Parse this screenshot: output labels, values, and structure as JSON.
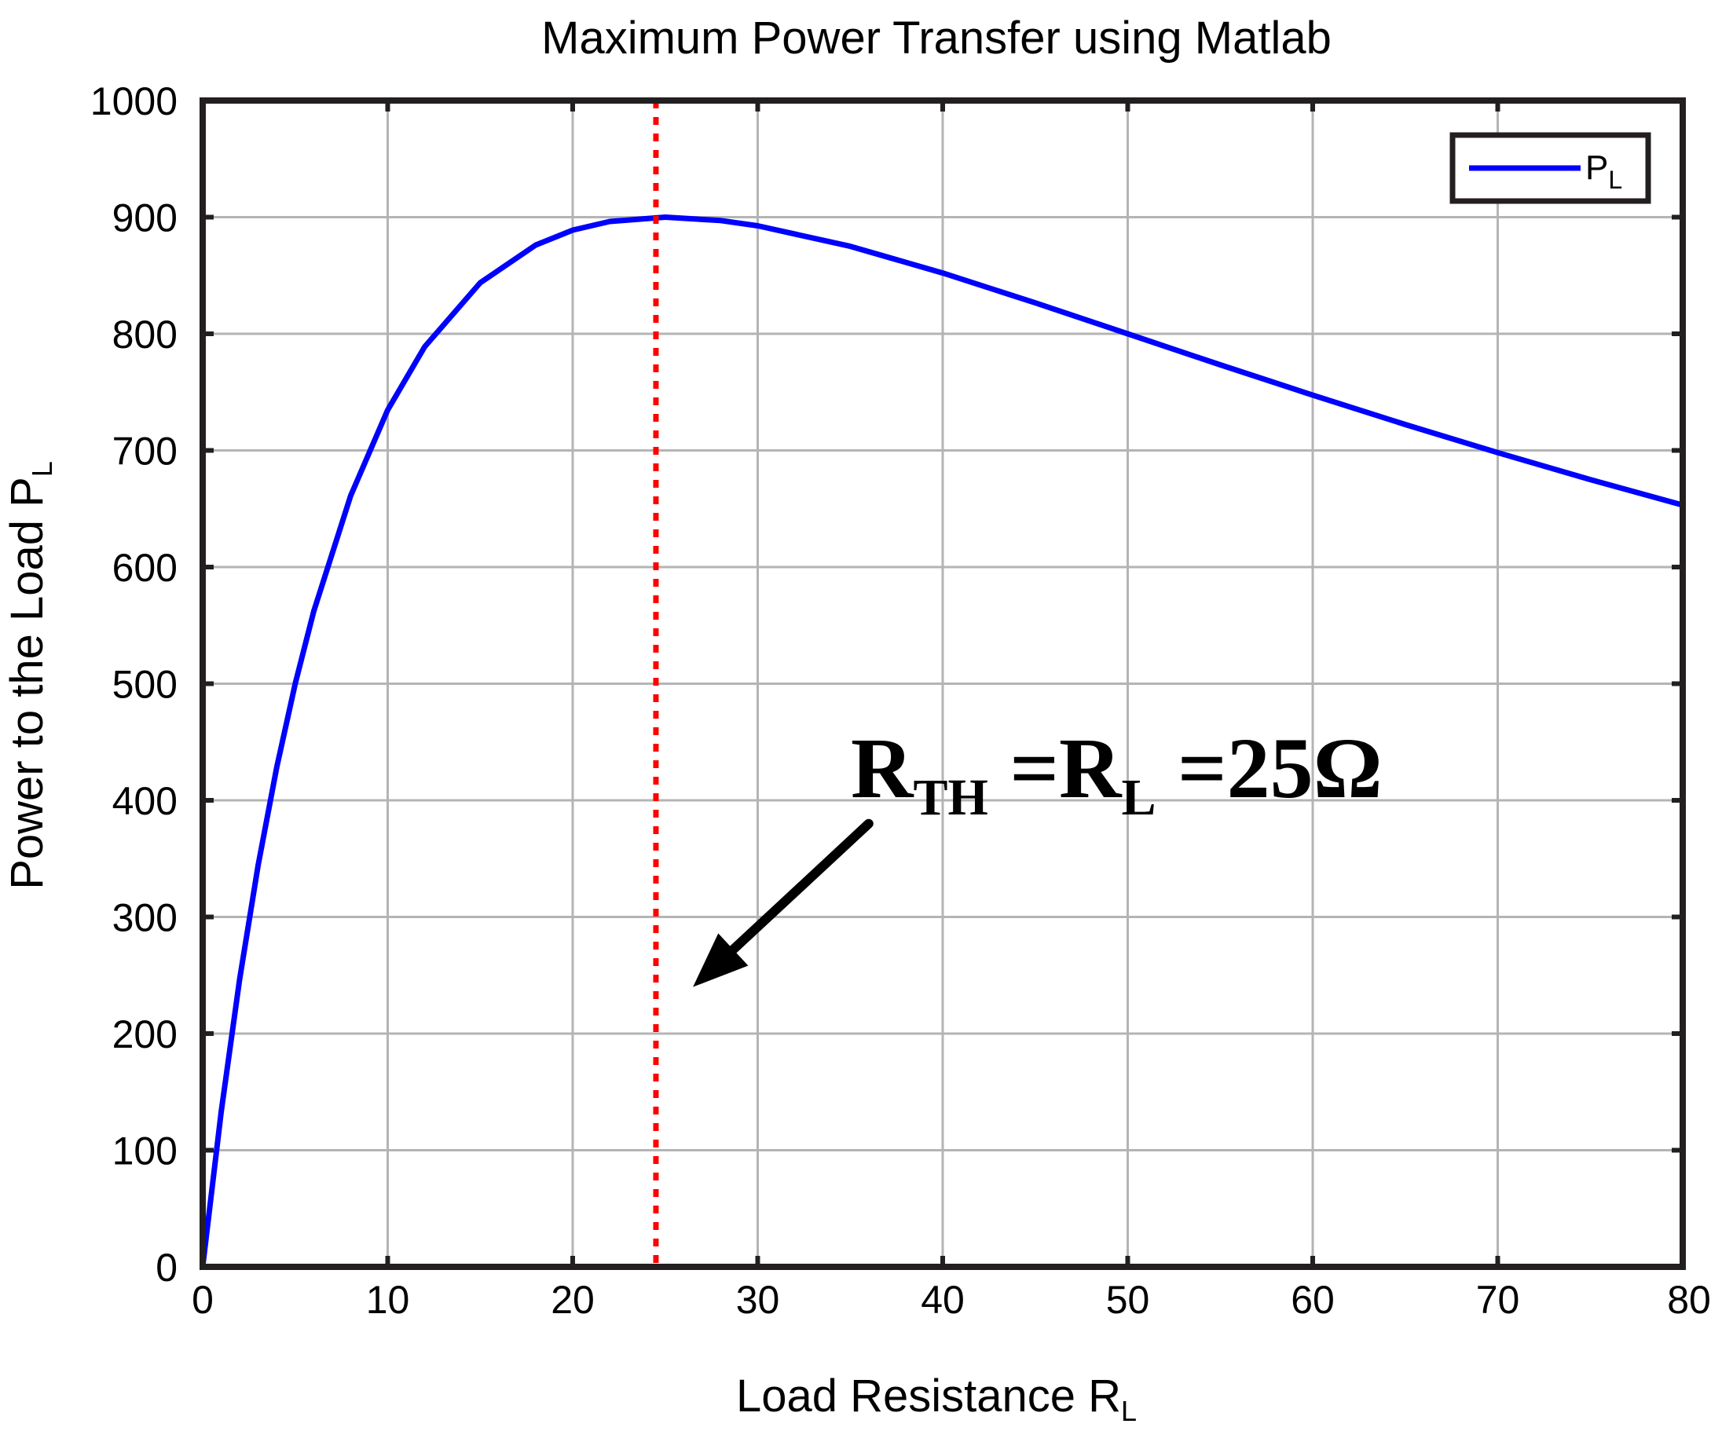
{
  "chart_data": {
    "type": "line",
    "title": "Maximum Power Transfer using Matlab",
    "xlabel": "Load Resistance R",
    "xlabel_sub": "L",
    "ylabel": "Power to the Load  P",
    "ylabel_sub": "L",
    "xlim": [
      0,
      80
    ],
    "ylim": [
      0,
      1000
    ],
    "xticks": [
      0,
      10,
      20,
      30,
      40,
      50,
      60,
      70,
      80
    ],
    "yticks": [
      0,
      100,
      200,
      300,
      400,
      500,
      600,
      700,
      800,
      900,
      1000
    ],
    "grid": true,
    "legend_position": "top-right",
    "series": [
      {
        "name": "P",
        "name_sub": "L",
        "color": "#0000ff",
        "formula": "P = 300^2 * R / (25 + R)^2",
        "x": [
          0,
          1,
          2,
          3,
          4,
          5,
          6,
          8,
          10,
          12,
          15,
          18,
          20,
          22,
          25,
          28,
          30,
          35,
          40,
          45,
          50,
          55,
          60,
          65,
          70,
          75,
          80
        ],
        "values": [
          0,
          133.1,
          246.9,
          344.4,
          428.1,
          500,
          561.9,
          661.2,
          734.7,
          788.9,
          843.8,
          876.1,
          888.9,
          896.3,
          900,
          897.1,
          892.6,
          875,
          852.1,
          826.5,
          800,
          773.4,
          747.4,
          722.2,
          698.1,
          675,
          653.1
        ]
      }
    ],
    "reference_line": {
      "x": 24.5,
      "color": "#ff0000",
      "style": "dotted"
    },
    "annotation": {
      "parts": [
        "R",
        "TH",
        " =R",
        "L",
        " =25Ω"
      ],
      "arrow_from": [
        36,
        380
      ],
      "arrow_to": [
        26.5,
        240
      ]
    }
  }
}
